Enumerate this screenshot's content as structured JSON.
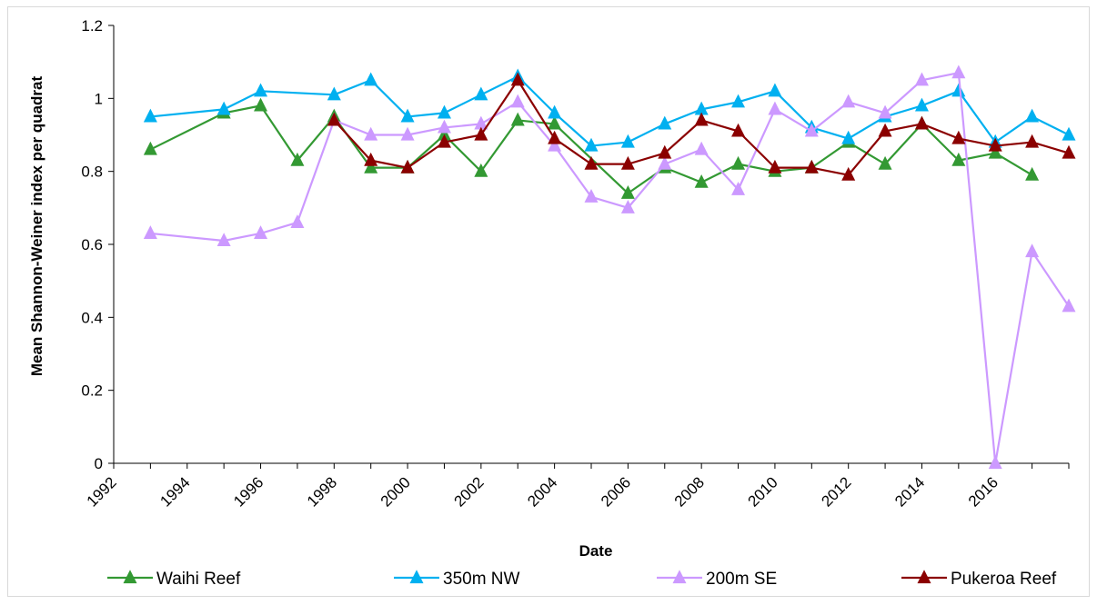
{
  "chart_data": {
    "type": "line",
    "xlabel": "Date",
    "ylabel": "Mean Shannon-Weiner index per quadrat",
    "xlim": [
      1992,
      2017
    ],
    "ylim": [
      0,
      1.2
    ],
    "x_ticks": [
      "1992",
      "1994",
      "1996",
      "1998",
      "2000",
      "2002",
      "2004",
      "2006",
      "2008",
      "2010",
      "2012",
      "2014",
      "2016"
    ],
    "y_ticks": [
      "0",
      "0.2",
      "0.4",
      "0.6",
      "0.8",
      "1",
      "1.2"
    ],
    "legend_position": "bottom",
    "marker": "triangle",
    "series": [
      {
        "name": "Waihi Reef",
        "color": "#339933",
        "x": [
          1993,
          1995,
          1996,
          1997,
          1998,
          1999,
          2000,
          2001,
          2002,
          2003,
          2004,
          2006,
          2007,
          2008,
          2009,
          2010,
          2011,
          2012,
          2013,
          2014,
          2015,
          2016,
          2017
        ],
        "values": [
          0.86,
          0.96,
          0.98,
          0.83,
          0.95,
          0.81,
          0.81,
          0.9,
          0.8,
          0.94,
          0.93,
          0.74,
          0.81,
          0.77,
          0.82,
          0.8,
          0.81,
          0.88,
          0.82,
          0.93,
          0.83,
          0.85,
          0.79
        ]
      },
      {
        "name": "350m NW",
        "color": "#00b0f0",
        "x": [
          1993,
          1995,
          1996,
          1998,
          1999,
          2000,
          2001,
          2002,
          2003,
          2004,
          2005,
          2006,
          2007,
          2008,
          2009,
          2010,
          2011,
          2012,
          2013,
          2014,
          2015,
          2016,
          2017,
          2018
        ],
        "values": [
          0.95,
          0.97,
          1.02,
          1.01,
          1.05,
          0.95,
          0.96,
          1.01,
          1.06,
          0.96,
          0.87,
          0.88,
          0.93,
          0.97,
          0.99,
          1.02,
          0.92,
          0.89,
          0.95,
          0.98,
          1.02,
          0.88,
          0.95,
          0.9
        ]
      },
      {
        "name": "200m SE",
        "color": "#cc99ff",
        "x": [
          1993,
          1995,
          1996,
          1997,
          1998,
          1999,
          2000,
          2001,
          2002,
          2003,
          2004,
          2005,
          2006,
          2007,
          2008,
          2009,
          2010,
          2011,
          2012,
          2013,
          2014,
          2015,
          2016,
          2017,
          2018
        ],
        "values": [
          0.63,
          0.61,
          0.63,
          0.66,
          0.94,
          0.9,
          0.9,
          0.92,
          0.93,
          0.99,
          0.87,
          0.73,
          0.7,
          0.82,
          0.86,
          0.75,
          0.97,
          0.91,
          0.99,
          0.96,
          1.05,
          1.07,
          0.0,
          0.58,
          0.43
        ]
      },
      {
        "name": "Pukeroa Reef",
        "color": "#8b0000",
        "x": [
          1998,
          1999,
          2000,
          2001,
          2002,
          2003,
          2004,
          2005,
          2006,
          2007,
          2008,
          2009,
          2010,
          2011,
          2012,
          2013,
          2014,
          2015,
          2016,
          2017,
          2018
        ],
        "values": [
          0.94,
          0.83,
          0.81,
          0.88,
          0.9,
          1.05,
          0.89,
          0.82,
          0.82,
          0.85,
          0.94,
          0.91,
          0.81,
          0.81,
          0.79,
          0.91,
          0.93,
          0.89,
          0.87,
          0.88,
          0.85
        ]
      }
    ]
  }
}
